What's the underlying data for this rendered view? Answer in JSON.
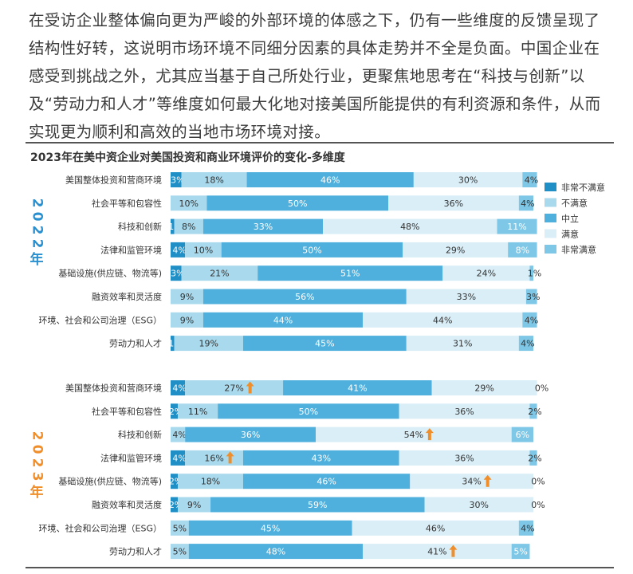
{
  "intro_text": "在受访企业整体偏向更为严峻的外部环境的体感之下，仍有一些维度的反馈呈现了结构性好转，这说明市场环境不同细分因素的具体走势并不全是负面。中国企业在感受到挑战之外，尤其应当基于自己所处行业，更聚焦地思考在“科技与创新”以及“劳动力和人才”等维度如何最大化地对接美国所能提供的有利资源和条件，从而实现更为顺利和高效的当地市场环境对接。",
  "chart_title": "2023年在美中资企业对美国投资和商业环境评价的变化-多维度",
  "colors": {
    "very_dissatisfied": "#1f8fc6",
    "dissatisfied": "#a9d9ec",
    "neutral": "#4fb0de",
    "satisfied": "#d9eef7",
    "very_satisfied": "#7fc7e6",
    "year_2022": "#2a8fce",
    "year_2023": "#ef8e2a",
    "arrow": "#ef8e2a"
  },
  "chart_data": {
    "type": "stacked-bar-horizontal",
    "legend": [
      "非常不满意",
      "不满意",
      "中立",
      "满意",
      "非常满意"
    ],
    "legend_position": "right",
    "groups": [
      {
        "year_chars": [
          "2",
          "0",
          "2",
          "2"
        ],
        "year_unit": "年",
        "rows": [
          {
            "label": "美国整体投资和营商环境",
            "values": [
              3,
              18,
              46,
              30,
              4
            ],
            "value_labels": [
              "3%",
              "18%",
              "46%",
              "30%",
              "4%"
            ],
            "up": [
              false,
              false,
              false,
              false,
              false
            ]
          },
          {
            "label": "社会平等和包容性",
            "values": [
              0,
              10,
              50,
              36,
              4
            ],
            "value_labels": [
              "0",
              "10%",
              "50%",
              "36%",
              "4%"
            ],
            "up": [
              false,
              false,
              false,
              false,
              false
            ]
          },
          {
            "label": "科技和创新",
            "values": [
              1,
              8,
              33,
              48,
              11
            ],
            "value_labels": [
              "1%",
              "8%",
              "33%",
              "48%",
              "11%"
            ],
            "up": [
              false,
              false,
              false,
              false,
              false
            ]
          },
          {
            "label": "法律和监管环境",
            "values": [
              4,
              10,
              50,
              29,
              8
            ],
            "value_labels": [
              "4%",
              "10%",
              "50%",
              "29%",
              "8%"
            ],
            "up": [
              false,
              false,
              false,
              false,
              false
            ]
          },
          {
            "label": "基础设施(供应链、物流等)",
            "values": [
              3,
              21,
              51,
              24,
              1
            ],
            "value_labels": [
              "3%",
              "21%",
              "51%",
              "24%",
              "1%"
            ],
            "up": [
              false,
              false,
              false,
              false,
              false
            ]
          },
          {
            "label": "融资效率和灵活度",
            "values": [
              0,
              9,
              56,
              33,
              3
            ],
            "value_labels": [
              "0",
              "9%",
              "56%",
              "33%",
              "3%"
            ],
            "up": [
              false,
              false,
              false,
              false,
              false
            ]
          },
          {
            "label": "环境、社会和公司治理（ESG）",
            "values": [
              0,
              9,
              44,
              44,
              4
            ],
            "value_labels": [
              "0",
              "9%",
              "44%",
              "44%",
              "4%"
            ],
            "up": [
              false,
              false,
              false,
              false,
              false
            ]
          },
          {
            "label": "劳动力和人才",
            "values": [
              1,
              19,
              45,
              31,
              4
            ],
            "value_labels": [
              "1%",
              "19%",
              "45%",
              "31%",
              "4%"
            ],
            "up": [
              false,
              false,
              false,
              false,
              false
            ]
          }
        ]
      },
      {
        "year_chars": [
          "2",
          "0",
          "2",
          "3"
        ],
        "year_unit": "年",
        "rows": [
          {
            "label": "美国整体投资和营商环境",
            "values": [
              4,
              27,
              41,
              29,
              0
            ],
            "value_labels": [
              "4%",
              "27%",
              "41%",
              "29%",
              "0%"
            ],
            "up": [
              false,
              true,
              false,
              false,
              false
            ]
          },
          {
            "label": "社会平等和包容性",
            "values": [
              2,
              11,
              50,
              36,
              2
            ],
            "value_labels": [
              "2%",
              "11%",
              "50%",
              "36%",
              "2%"
            ],
            "up": [
              false,
              false,
              false,
              false,
              false
            ]
          },
          {
            "label": "科技和创新",
            "values": [
              0,
              4,
              36,
              54,
              6
            ],
            "value_labels": [
              "",
              "4%",
              "36%",
              "54%",
              "6%"
            ],
            "up": [
              false,
              false,
              false,
              true,
              false
            ]
          },
          {
            "label": "法律和监管环境",
            "values": [
              4,
              16,
              43,
              36,
              2
            ],
            "value_labels": [
              "4%",
              "16%",
              "43%",
              "36%",
              "2%"
            ],
            "up": [
              false,
              true,
              false,
              false,
              false
            ]
          },
          {
            "label": "基础设施(供应链、物流等)",
            "values": [
              2,
              18,
              46,
              34,
              0
            ],
            "value_labels": [
              "2%",
              "18%",
              "46%",
              "34%",
              "0%"
            ],
            "up": [
              false,
              false,
              false,
              true,
              false
            ]
          },
          {
            "label": "融资效率和灵活度",
            "values": [
              2,
              9,
              59,
              30,
              0
            ],
            "value_labels": [
              "2%",
              "9%",
              "59%",
              "30%",
              "0%"
            ],
            "up": [
              false,
              false,
              false,
              false,
              false
            ]
          },
          {
            "label": "环境、社会和公司治理（ESG）",
            "values": [
              0,
              5,
              45,
              46,
              4
            ],
            "value_labels": [
              "0",
              "5%",
              "45%",
              "46%",
              "4%"
            ],
            "up": [
              false,
              false,
              false,
              false,
              false
            ]
          },
          {
            "label": "劳动力和人才",
            "values": [
              0,
              5,
              48,
              41,
              5
            ],
            "value_labels": [
              "0",
              "5%",
              "48%",
              "41%",
              "5%"
            ],
            "up": [
              false,
              false,
              false,
              true,
              false
            ]
          }
        ]
      }
    ]
  }
}
